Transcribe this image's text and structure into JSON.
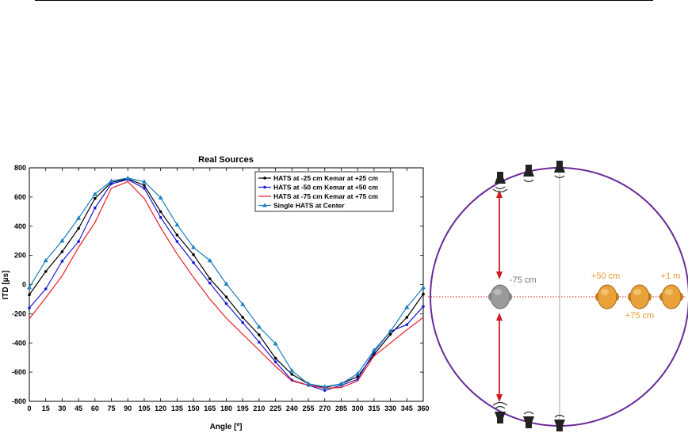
{
  "chart_data": {
    "type": "line",
    "title": "Real Sources",
    "xlabel": "Angle [º]",
    "ylabel": "ITD [µs]",
    "xlim": [
      0,
      360
    ],
    "ylim": [
      -800,
      800
    ],
    "x": [
      0,
      15,
      30,
      45,
      60,
      75,
      90,
      105,
      120,
      135,
      150,
      165,
      180,
      195,
      210,
      225,
      240,
      255,
      270,
      285,
      300,
      315,
      330,
      345,
      360
    ],
    "xticks": [
      "0",
      "15",
      "30",
      "45",
      "60",
      "75",
      "90",
      "105",
      "120",
      "135",
      "150",
      "165",
      "180",
      "195",
      "210",
      "225",
      "240",
      "255",
      "270",
      "285",
      "300",
      "315",
      "330",
      "345",
      "360"
    ],
    "yticks": [
      -800,
      -600,
      -400,
      -200,
      0,
      200,
      400,
      600,
      800
    ],
    "grid": false,
    "legend_position": "top-right",
    "series": [
      {
        "name": "HATS at -25 cm Kemar at +25 cm",
        "color": "#000000",
        "marker": "dot",
        "values": [
          -70,
          90,
          225,
          385,
          590,
          700,
          725,
          680,
          500,
          340,
          205,
          40,
          -85,
          -225,
          -345,
          -505,
          -615,
          -680,
          -705,
          -680,
          -630,
          -480,
          -340,
          -225,
          -65
        ]
      },
      {
        "name": "HATS at -50 cm Kemar at +50 cm",
        "color": "#1a1ad6",
        "marker": "dot",
        "values": [
          -160,
          -30,
          160,
          295,
          525,
          690,
          720,
          660,
          460,
          295,
          150,
          10,
          -130,
          -260,
          -395,
          -530,
          -655,
          -690,
          -725,
          -690,
          -650,
          -460,
          -320,
          -275,
          -150
        ]
      },
      {
        "name": "HATS at -75 cm Kemar at +75 cm",
        "color": "#ee1c25",
        "marker": "none",
        "values": [
          -235,
          -90,
          60,
          255,
          425,
          660,
          705,
          590,
          390,
          210,
          50,
          -100,
          -230,
          -340,
          -450,
          -560,
          -660,
          -690,
          -710,
          -705,
          -660,
          -490,
          -400,
          -310,
          -225
        ]
      },
      {
        "name": "Single HATS at Center",
        "color": "#1a7fc0",
        "marker": "triangle",
        "values": [
          -20,
          165,
          300,
          455,
          620,
          710,
          730,
          705,
          595,
          410,
          255,
          165,
          5,
          -135,
          -290,
          -405,
          -590,
          -680,
          -700,
          -680,
          -610,
          -450,
          -320,
          -155,
          -20
        ]
      }
    ]
  },
  "diagram": {
    "left_label": "-75 cm",
    "right_labels": [
      "+50 cm",
      "+75 cm",
      "+1 m"
    ]
  },
  "colors": {
    "circle": "#6a2a9a",
    "arrow": "#cc1b1b",
    "center_head": "#9a9a9a",
    "side_heads": "#e9a23a",
    "label_gray": "#777777",
    "label_orange": "#e39b2a"
  }
}
